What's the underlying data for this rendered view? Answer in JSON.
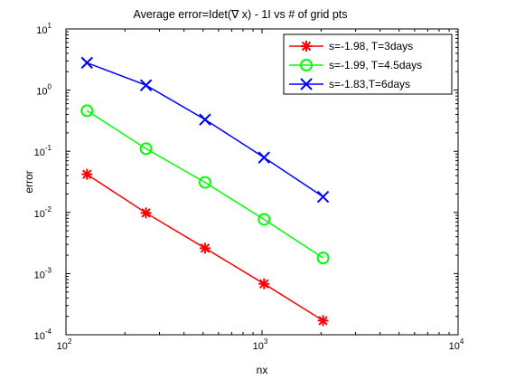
{
  "chart_data": {
    "type": "line",
    "title": "Average error=Idet(∇ x) - 1I vs # of grid pts",
    "xlabel": "nx",
    "ylabel": "error",
    "x_scale": "log",
    "y_scale": "log",
    "xlim": [
      100,
      10000
    ],
    "ylim": [
      0.0001,
      10
    ],
    "x_ticks": [
      {
        "value": 100,
        "base": "10",
        "exp": "2"
      },
      {
        "value": 1000,
        "base": "10",
        "exp": "3"
      },
      {
        "value": 10000,
        "base": "10",
        "exp": "4"
      }
    ],
    "y_ticks": [
      {
        "value": 0.0001,
        "base": "10",
        "exp": "-4"
      },
      {
        "value": 0.001,
        "base": "10",
        "exp": "-3"
      },
      {
        "value": 0.01,
        "base": "10",
        "exp": "-2"
      },
      {
        "value": 0.1,
        "base": "10",
        "exp": "-1"
      },
      {
        "value": 1,
        "base": "10",
        "exp": "0"
      },
      {
        "value": 10,
        "base": "10",
        "exp": "1"
      }
    ],
    "x": [
      128,
      256,
      512,
      1024,
      2048
    ],
    "series": [
      {
        "name": "s=-1.98, T=3days",
        "color": "#ff0000",
        "marker": "asterisk",
        "values": [
          0.042,
          0.0098,
          0.0026,
          0.00068,
          0.00017
        ]
      },
      {
        "name": "s=-1.99, T=4.5days",
        "color": "#00ff00",
        "marker": "circle",
        "values": [
          0.46,
          0.11,
          0.031,
          0.0077,
          0.0018
        ]
      },
      {
        "name": "s=-1.83,T=6days",
        "color": "#0000ff",
        "marker": "x",
        "values": [
          2.8,
          1.2,
          0.33,
          0.079,
          0.018
        ],
        "x": [
          128,
          256,
          512,
          1024,
          2048
        ]
      }
    ],
    "grid": false,
    "legend": "top-right"
  }
}
